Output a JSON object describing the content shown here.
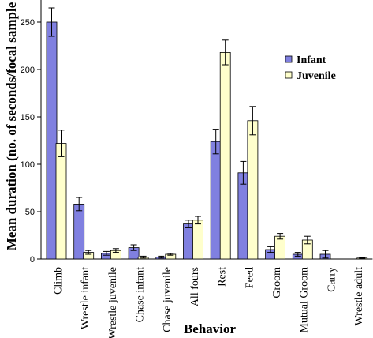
{
  "chart_data": {
    "type": "bar",
    "title": "",
    "xlabel": "Behavior",
    "ylabel": "Mean duration (no. of seconds/focal sample",
    "ylim": [
      0,
      250
    ],
    "yticks": [
      0,
      50,
      100,
      150,
      200,
      250
    ],
    "grid": false,
    "legend_position": "right",
    "categories": [
      "Climb",
      "Wrestle infant",
      "Wrestle juvenile",
      "Chase infant",
      "Chase juvenile",
      "All fours",
      "Rest",
      "Feed",
      "Groom",
      "Mutual Groom",
      "Carry",
      "Wrestle adult"
    ],
    "series": [
      {
        "name": "Infant",
        "color": "#8080e0",
        "values": [
          250,
          58,
          6,
          12,
          2,
          37,
          124,
          91,
          10,
          5,
          5,
          0
        ],
        "errors": [
          15,
          7,
          2,
          3,
          1,
          4,
          13,
          12,
          3,
          2,
          4,
          0
        ]
      },
      {
        "name": "Juvenile",
        "color": "#ffffcc",
        "values": [
          122,
          7,
          9,
          2,
          5,
          41,
          218,
          146,
          24,
          20,
          0,
          1
        ],
        "errors": [
          14,
          2,
          2,
          1,
          1,
          4,
          13,
          15,
          3,
          4,
          0,
          0.5
        ]
      }
    ]
  }
}
